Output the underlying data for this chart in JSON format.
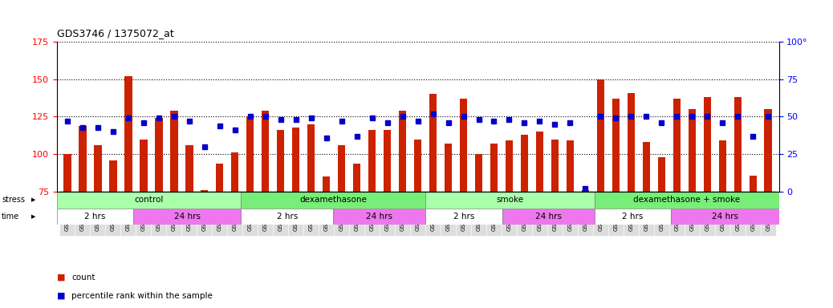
{
  "title": "GDS3746 / 1375072_at",
  "samples": [
    "GSM389536",
    "GSM389537",
    "GSM389538",
    "GSM389539",
    "GSM389540",
    "GSM389541",
    "GSM389530",
    "GSM389531",
    "GSM389532",
    "GSM389533",
    "GSM389534",
    "GSM389535",
    "GSM389560",
    "GSM389561",
    "GSM389562",
    "GSM389563",
    "GSM389564",
    "GSM389565",
    "GSM389554",
    "GSM389555",
    "GSM389556",
    "GSM389557",
    "GSM389558",
    "GSM389559",
    "GSM389571",
    "GSM389572",
    "GSM389573",
    "GSM389574",
    "GSM389575",
    "GSM389576",
    "GSM389566",
    "GSM389567",
    "GSM389568",
    "GSM389569",
    "GSM389570",
    "GSM389548",
    "GSM389549",
    "GSM389550",
    "GSM389551",
    "GSM389552",
    "GSM389553",
    "GSM389542",
    "GSM389543",
    "GSM389544",
    "GSM389545",
    "GSM389546",
    "GSM389547"
  ],
  "counts": [
    100,
    119,
    106,
    96,
    152,
    110,
    124,
    129,
    106,
    76,
    94,
    101,
    125,
    129,
    116,
    118,
    120,
    85,
    106,
    94,
    116,
    116,
    129,
    110,
    140,
    107,
    137,
    100,
    107,
    109,
    113,
    115,
    110,
    109,
    76,
    150,
    137,
    141,
    108,
    98,
    137,
    130,
    138,
    109,
    138,
    86,
    130
  ],
  "percentiles": [
    47,
    43,
    43,
    40,
    49,
    46,
    49,
    50,
    47,
    30,
    44,
    41,
    50,
    50,
    48,
    48,
    49,
    36,
    47,
    37,
    49,
    46,
    50,
    47,
    52,
    46,
    50,
    48,
    47,
    48,
    46,
    47,
    45,
    46,
    2,
    50,
    49,
    50,
    50,
    46,
    50,
    50,
    50,
    46,
    50,
    37,
    50
  ],
  "ylim_left": [
    75,
    175
  ],
  "ylim_right": [
    0,
    100
  ],
  "yticks_left": [
    75,
    100,
    125,
    150,
    175
  ],
  "yticks_right": [
    0,
    25,
    50,
    75,
    100
  ],
  "bar_color": "#CC2200",
  "dot_color": "#0000CC",
  "stress_groups": [
    {
      "label": "control",
      "start": 0,
      "end": 12,
      "color": "#AAFFAA"
    },
    {
      "label": "dexamethasone",
      "start": 12,
      "end": 24,
      "color": "#77EE77"
    },
    {
      "label": "smoke",
      "start": 24,
      "end": 35,
      "color": "#AAFFAA"
    },
    {
      "label": "dexamethasone + smoke",
      "start": 35,
      "end": 47,
      "color": "#77EE77"
    }
  ],
  "time_groups": [
    {
      "label": "2 hrs",
      "start": 0,
      "end": 5,
      "color": "#FFFFFF"
    },
    {
      "label": "24 hrs",
      "start": 5,
      "end": 12,
      "color": "#EE77EE"
    },
    {
      "label": "2 hrs",
      "start": 12,
      "end": 18,
      "color": "#FFFFFF"
    },
    {
      "label": "24 hrs",
      "start": 18,
      "end": 24,
      "color": "#EE77EE"
    },
    {
      "label": "2 hrs",
      "start": 24,
      "end": 29,
      "color": "#FFFFFF"
    },
    {
      "label": "24 hrs",
      "start": 29,
      "end": 35,
      "color": "#EE77EE"
    },
    {
      "label": "2 hrs",
      "start": 35,
      "end": 40,
      "color": "#FFFFFF"
    },
    {
      "label": "24 hrs",
      "start": 40,
      "end": 47,
      "color": "#EE77EE"
    }
  ],
  "bg_color": "#FFFFFF",
  "tick_bg_color": "#DDDDDD"
}
